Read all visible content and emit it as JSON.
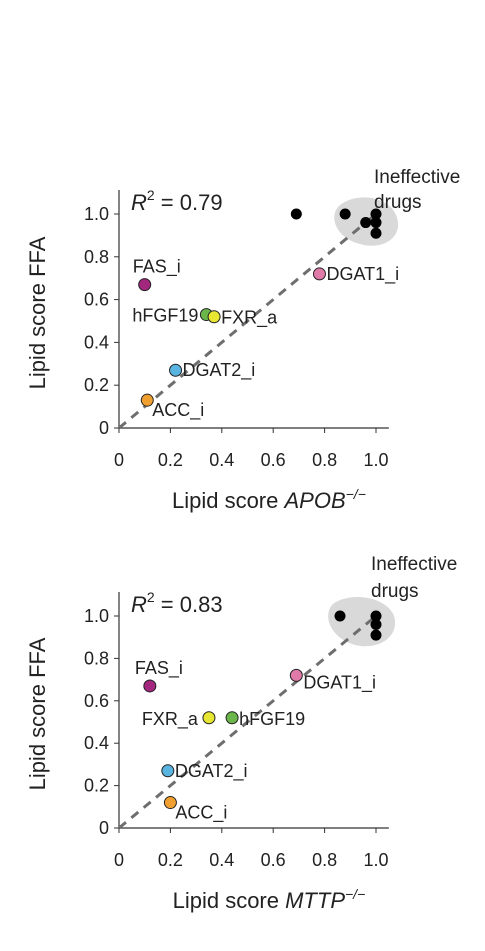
{
  "chart_data": [
    {
      "type": "scatter",
      "xlabel_main": "Lipid score ",
      "xlabel_italic": "APOB",
      "xlabel_sup": "−/−",
      "ylabel": "Lipid score FFA",
      "r2_prefix": "R",
      "r2_sup": "2",
      "r2_value": " = 0.79",
      "xlim": [
        0,
        1.05
      ],
      "ylim": [
        0,
        1.1
      ],
      "x_ticks": [
        "0",
        "0.2",
        "0.4",
        "0.6",
        "0.8",
        "1.0"
      ],
      "y_ticks": [
        "0",
        "0.2",
        "0.4",
        "0.6",
        "0.8",
        "1.0"
      ],
      "ineffective_label_line1": "Ineffective",
      "ineffective_label_line2": "drugs",
      "labeled_points": [
        {
          "label": "FAS_i",
          "x": 0.1,
          "y": 0.67,
          "color": "#a3267f"
        },
        {
          "label": "hFGF19",
          "x": 0.34,
          "y": 0.53,
          "color": "#6bb64a"
        },
        {
          "label": "FXR_a",
          "x": 0.37,
          "y": 0.52,
          "color": "#e6e633"
        },
        {
          "label": "DGAT1_i",
          "x": 0.78,
          "y": 0.72,
          "color": "#e07aa8"
        },
        {
          "label": "DGAT2_i",
          "x": 0.22,
          "y": 0.27,
          "color": "#5ab4e0"
        },
        {
          "label": "ACC_i",
          "x": 0.11,
          "y": 0.13,
          "color": "#f0a030"
        }
      ],
      "ineffective_points": [
        {
          "x": 0.69,
          "y": 1.0
        },
        {
          "x": 0.88,
          "y": 1.0
        },
        {
          "x": 0.96,
          "y": 0.96
        },
        {
          "x": 1.0,
          "y": 1.0
        },
        {
          "x": 1.0,
          "y": 0.96
        },
        {
          "x": 1.0,
          "y": 0.91
        }
      ]
    },
    {
      "type": "scatter",
      "xlabel_main": "Lipid score ",
      "xlabel_italic": "MTTP",
      "xlabel_sup": "−/−",
      "ylabel": "Lipid score FFA",
      "r2_prefix": "R",
      "r2_sup": "2",
      "r2_value": " = 0.83",
      "xlim": [
        0,
        1.05
      ],
      "ylim": [
        0,
        1.1
      ],
      "x_ticks": [
        "0",
        "0.2",
        "0.4",
        "0.6",
        "0.8",
        "1.0"
      ],
      "y_ticks": [
        "0",
        "0.2",
        "0.4",
        "0.6",
        "0.8",
        "1.0"
      ],
      "ineffective_label_line1": "Ineffective",
      "ineffective_label_line2": "drugs",
      "labeled_points": [
        {
          "label": "FAS_i",
          "x": 0.12,
          "y": 0.67,
          "color": "#a3267f"
        },
        {
          "label": "FXR_a",
          "x": 0.35,
          "y": 0.52,
          "color": "#e6e633"
        },
        {
          "label": "hFGF19",
          "x": 0.44,
          "y": 0.52,
          "color": "#6bb64a"
        },
        {
          "label": "DGAT1_i",
          "x": 0.69,
          "y": 0.72,
          "color": "#e07aa8"
        },
        {
          "label": "DGAT2_i",
          "x": 0.19,
          "y": 0.27,
          "color": "#5ab4e0"
        },
        {
          "label": "ACC_i",
          "x": 0.2,
          "y": 0.12,
          "color": "#f0a030"
        }
      ],
      "ineffective_points": [
        {
          "x": 0.86,
          "y": 1.0
        },
        {
          "x": 1.0,
          "y": 1.0
        },
        {
          "x": 1.0,
          "y": 0.96
        },
        {
          "x": 1.0,
          "y": 0.91
        }
      ]
    }
  ]
}
